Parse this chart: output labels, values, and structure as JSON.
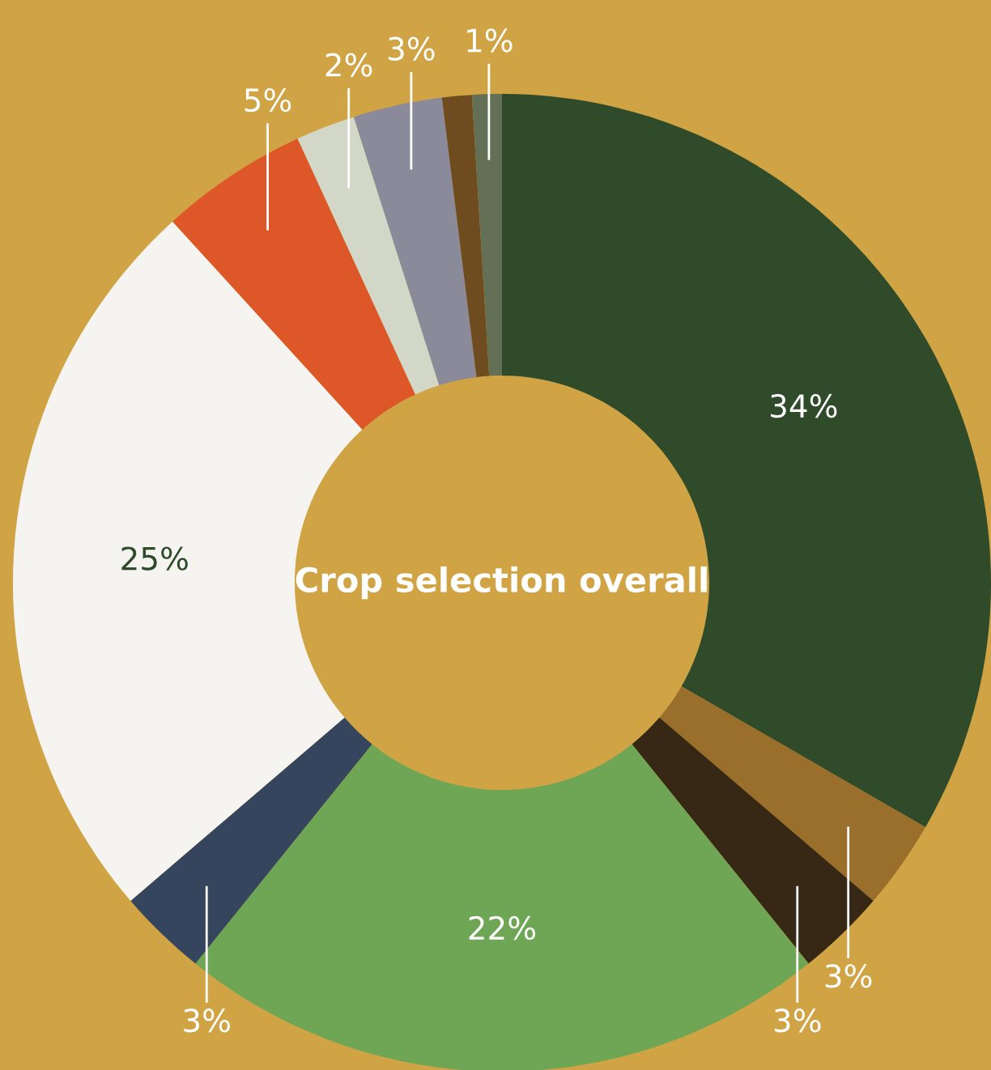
{
  "chart_data": {
    "type": "donut",
    "title": "Crop selection overall",
    "categories": [
      null,
      null,
      null,
      null,
      null,
      null,
      null,
      null,
      null,
      null,
      null
    ],
    "values": [
      34,
      3,
      3,
      22,
      3,
      25,
      5,
      2,
      3,
      1,
      1
    ],
    "value_labels": [
      "34%",
      "3%",
      "3%",
      "22%",
      "3%",
      "25%",
      "5%",
      "2%",
      "3%",
      null,
      "1%"
    ],
    "colors": [
      "#2f4b29",
      "#9a6e2b",
      "#362814",
      "#6fa655",
      "#36455e",
      "#f5f4f0",
      "#de5728",
      "#d3d7c8",
      "#8a8a9a",
      "#6e4c20",
      "#647055"
    ]
  }
}
